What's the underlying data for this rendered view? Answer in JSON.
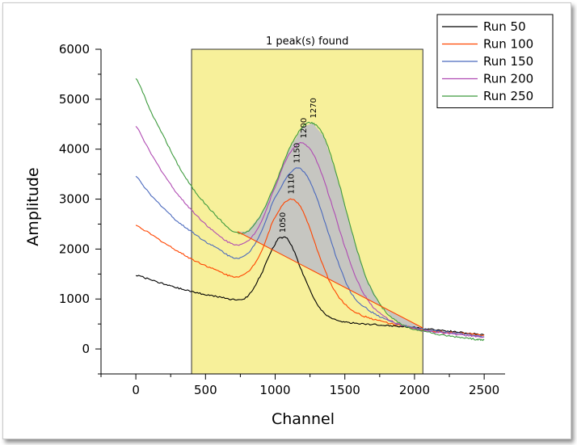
{
  "chart_data": {
    "type": "line",
    "xlabel": "Channel",
    "ylabel": "Amplitude",
    "xlim": [
      -250,
      2650
    ],
    "ylim": [
      -500,
      6000
    ],
    "xticks": [
      0,
      500,
      1000,
      1500,
      2000,
      2500
    ],
    "yticks": [
      0,
      1000,
      2000,
      3000,
      4000,
      5000,
      6000
    ],
    "grid": false,
    "legend_position": "top-right",
    "region": {
      "x_start": 400,
      "x_end": 2060,
      "label": "1 peak(s) found",
      "color": "#f7f09a"
    },
    "baseline": {
      "from": [
        730,
        2350
      ],
      "to": [
        2060,
        420
      ]
    },
    "peak_area_color": "#c3c3c3",
    "series": [
      {
        "name": "Run 50",
        "color": "#000000",
        "peak_label": "1050",
        "x": [
          0,
          100,
          200,
          300,
          400,
          500,
          600,
          700,
          800,
          900,
          1000,
          1050,
          1100,
          1200,
          1300,
          1400,
          1500,
          1600,
          1700,
          1800,
          1900,
          2000,
          2100,
          2200,
          2300,
          2400,
          2500
        ],
        "values": [
          1480,
          1390,
          1300,
          1220,
          1150,
          1090,
          1040,
          990,
          1050,
          1500,
          2100,
          2230,
          2150,
          1500,
          900,
          620,
          540,
          510,
          490,
          470,
          450,
          430,
          400,
          370,
          340,
          310,
          280
        ]
      },
      {
        "name": "Run 100",
        "color": "#ff4500",
        "peak_label": "1110",
        "x": [
          0,
          100,
          200,
          300,
          400,
          500,
          600,
          700,
          800,
          900,
          1000,
          1110,
          1200,
          1300,
          1400,
          1500,
          1600,
          1700,
          1800,
          1900,
          2000,
          2100,
          2200,
          2300,
          2400,
          2500
        ],
        "values": [
          2470,
          2310,
          2130,
          1960,
          1800,
          1670,
          1550,
          1450,
          1530,
          1950,
          2650,
          3000,
          2750,
          2000,
          1300,
          900,
          700,
          600,
          530,
          470,
          420,
          370,
          340,
          320,
          300,
          280
        ]
      },
      {
        "name": "Run 150",
        "color": "#4a69bd",
        "peak_label": "1150",
        "x": [
          0,
          100,
          200,
          300,
          400,
          500,
          600,
          700,
          800,
          900,
          1000,
          1150,
          1250,
          1350,
          1450,
          1550,
          1650,
          1750,
          1850,
          1950,
          2050,
          2150,
          2250,
          2350,
          2450,
          2500
        ],
        "values": [
          3450,
          3100,
          2820,
          2550,
          2350,
          2150,
          1990,
          1830,
          1900,
          2350,
          3050,
          3620,
          3350,
          2600,
          1750,
          1100,
          820,
          650,
          530,
          450,
          400,
          360,
          330,
          300,
          260,
          250
        ]
      },
      {
        "name": "Run 200",
        "color": "#b04bb3",
        "peak_label": "1200",
        "x": [
          0,
          100,
          200,
          300,
          400,
          500,
          600,
          700,
          800,
          900,
          1000,
          1100,
          1200,
          1300,
          1400,
          1500,
          1600,
          1700,
          1800,
          1900,
          2000,
          2100,
          2200,
          2300,
          2400,
          2500
        ],
        "values": [
          4450,
          3950,
          3500,
          3100,
          2780,
          2500,
          2260,
          2100,
          2150,
          2550,
          3250,
          3900,
          4120,
          3750,
          2950,
          2050,
          1300,
          850,
          620,
          480,
          400,
          350,
          320,
          290,
          260,
          240
        ]
      },
      {
        "name": "Run 250",
        "color": "#3e9b3e",
        "peak_label": "1270",
        "x": [
          0,
          100,
          200,
          300,
          400,
          500,
          600,
          700,
          800,
          900,
          1000,
          1100,
          1200,
          1270,
          1350,
          1450,
          1550,
          1650,
          1750,
          1850,
          1950,
          2050,
          2150,
          2250,
          2350,
          2450,
          2500
        ],
        "values": [
          5420,
          4800,
          4250,
          3700,
          3250,
          2900,
          2600,
          2350,
          2350,
          2700,
          3300,
          4000,
          4450,
          4520,
          4250,
          3400,
          2350,
          1450,
          900,
          600,
          430,
          370,
          300,
          260,
          230,
          190,
          180
        ]
      }
    ]
  }
}
